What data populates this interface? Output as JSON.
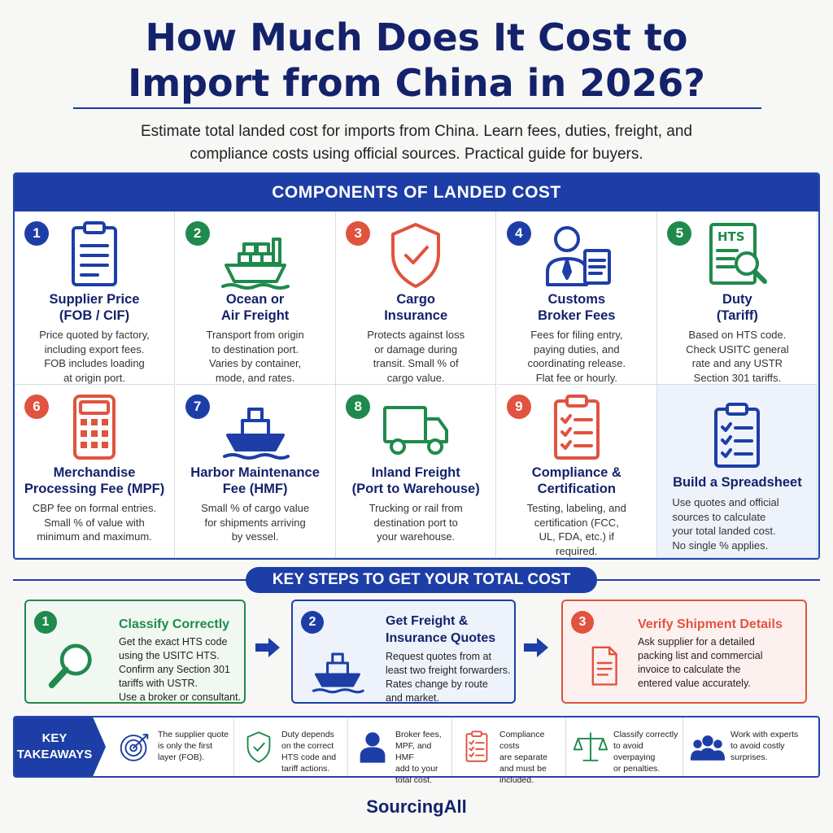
{
  "title_line1": "How Much Does It Cost to",
  "title_line2": "Import from China in 2026?",
  "subtitle_line1": "Estimate total landed cost for imports from China. Learn fees, duties, freight, and",
  "subtitle_line2": "compliance costs using official sources. Practical guide for buyers.",
  "components_header": "COMPONENTS OF LANDED COST",
  "components": [
    {
      "num": "1",
      "color": "#1d3ea6",
      "icon": "clipboard-icon",
      "title1": "Supplier Price",
      "title2": "(FOB / CIF)",
      "desc": [
        "Price quoted by factory,",
        "including export fees.",
        "FOB includes loading",
        "at origin port."
      ]
    },
    {
      "num": "2",
      "color": "#1f8a4c",
      "icon": "cargo-ship-icon",
      "title1": "Ocean or",
      "title2": "Air Freight",
      "desc": [
        "Transport from origin",
        "to destination port.",
        "Varies by container,",
        "mode, and rates."
      ]
    },
    {
      "num": "3",
      "color": "#e0533f",
      "icon": "shield-check-icon",
      "title1": "Cargo",
      "title2": "Insurance",
      "desc": [
        "Protects against loss",
        "or damage during",
        "transit. Small % of",
        "cargo value."
      ]
    },
    {
      "num": "4",
      "color": "#1d3ea6",
      "icon": "broker-document-icon",
      "title1": "Customs",
      "title2": "Broker Fees",
      "desc": [
        "Fees for filing entry,",
        "paying duties, and",
        "coordinating release.",
        "Flat fee or hourly."
      ]
    },
    {
      "num": "5",
      "color": "#1f8a4c",
      "icon": "hts-search-icon",
      "title1": "Duty",
      "title2": "(Tariff)",
      "desc": [
        "Based on HTS code.",
        "Check USITC general",
        "rate and any USTR",
        "Section 301 tariffs."
      ]
    },
    {
      "num": "6",
      "color": "#e0533f",
      "icon": "calculator-icon",
      "title1": "Merchandise",
      "title2": "Processing Fee (MPF)",
      "desc": [
        "CBP fee on formal entries.",
        "Small % of value with",
        "minimum and maximum."
      ]
    },
    {
      "num": "7",
      "color": "#1d3ea6",
      "icon": "ship-icon",
      "title1": "Harbor Maintenance",
      "title2": "Fee (HMF)",
      "desc": [
        "Small % of cargo value",
        "for shipments arriving",
        "by vessel."
      ]
    },
    {
      "num": "8",
      "color": "#1f8a4c",
      "icon": "truck-icon",
      "title1": "Inland Freight",
      "title2": "(Port to Warehouse)",
      "desc": [
        "Trucking or rail from",
        "destination port to",
        "your warehouse."
      ]
    },
    {
      "num": "9",
      "color": "#e0533f",
      "icon": "checklist-icon",
      "title1": "Compliance &",
      "title2": "Certification",
      "desc": [
        "Testing, labeling, and",
        "certification (FCC,",
        "UL, FDA, etc.) if",
        "required."
      ]
    },
    {
      "num": "",
      "color": "#1d3ea6",
      "icon": "spreadsheet-checklist-icon",
      "title1": "Build a Spreadsheet",
      "title2": "",
      "desc": [
        "Use quotes and official",
        "sources to calculate",
        "your total landed cost.",
        "No single % applies."
      ]
    }
  ],
  "steps_header": "KEY STEPS TO GET YOUR TOTAL COST",
  "steps": [
    {
      "num": "1",
      "color": "#1f8a4c",
      "icon": "magnifier-icon",
      "title": [
        "Classify Correctly"
      ],
      "desc": [
        "Get the exact HTS code",
        "using the USITC HTS.",
        "Confirm any Section 301",
        "tariffs with USTR.",
        "Use a broker or consultant."
      ]
    },
    {
      "num": "2",
      "color": "#1d3ea6",
      "icon": "ship-icon",
      "title": [
        "Get Freight &",
        "Insurance Quotes"
      ],
      "desc": [
        "Request quotes from at",
        "least two freight forwarders.",
        "Rates change by route",
        "and market."
      ]
    },
    {
      "num": "3",
      "color": "#e0533f",
      "icon": "document-icon",
      "title": [
        "Verify Shipment Details"
      ],
      "desc": [
        "Ask supplier for a detailed",
        "packing list and commercial",
        "invoice to calculate the",
        "entered value accurately."
      ]
    }
  ],
  "takeaways_label": [
    "KEY",
    "TAKEAWAYS"
  ],
  "takeaways": [
    {
      "icon": "target-icon",
      "color": "#1d3ea6",
      "text": [
        "The supplier quote",
        "is only the first",
        "layer (FOB)."
      ]
    },
    {
      "icon": "shield-check-icon",
      "color": "#1f8a4c",
      "text": [
        "Duty depends",
        "on the correct",
        "HTS code and",
        "tariff actions."
      ]
    },
    {
      "icon": "person-icon",
      "color": "#1d3ea6",
      "text": [
        "Broker fees,",
        "MPF, and HMF",
        "add to your",
        "total cost."
      ]
    },
    {
      "icon": "checklist-icon",
      "color": "#e0533f",
      "text": [
        "Compliance costs",
        "are separate",
        "and must be",
        "included."
      ]
    },
    {
      "icon": "scales-icon",
      "color": "#1f8a4c",
      "text": [
        "Classify correctly",
        "to avoid overpaying",
        "or penalties."
      ]
    },
    {
      "icon": "team-icon",
      "color": "#1d3ea6",
      "text": [
        "Work with experts",
        "to avoid costly",
        "surprises."
      ]
    }
  ],
  "brand": "SourcingAll"
}
